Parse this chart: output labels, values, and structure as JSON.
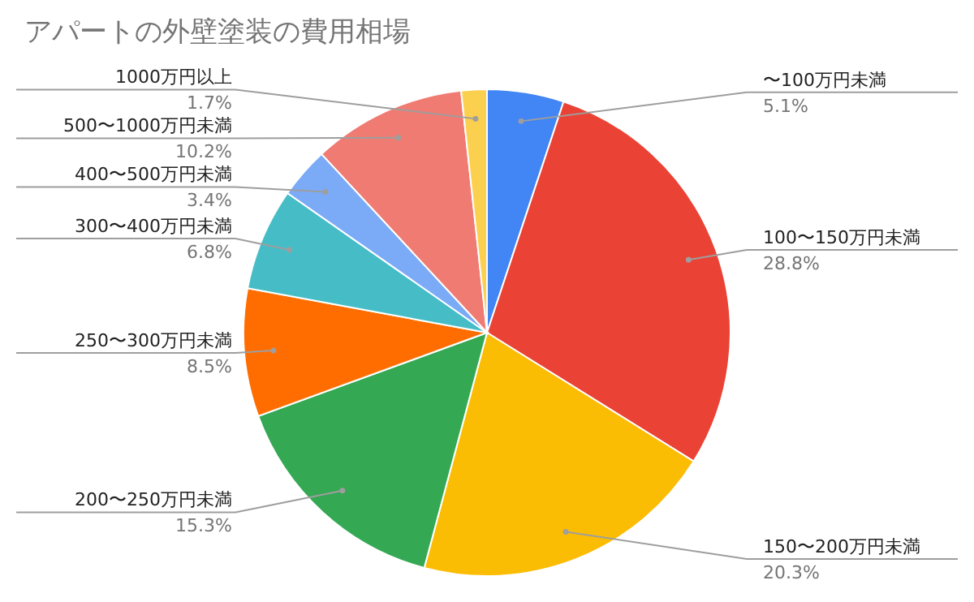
{
  "chart_data": {
    "type": "pie",
    "title": "アパートの外壁塗装の費用相場",
    "categories": [
      "〜100万円未満",
      "100〜150万円未満",
      "150〜200万円未満",
      "200〜250万円未満",
      "250〜300万円未満",
      "300〜400万円未満",
      "400〜500万円未満",
      "500〜1000万円未満",
      "1000万円以上"
    ],
    "values": [
      5.1,
      28.8,
      20.3,
      15.3,
      8.5,
      6.8,
      3.4,
      10.2,
      1.7
    ],
    "value_labels": [
      "5.1%",
      "28.8%",
      "20.3%",
      "15.3%",
      "8.5%",
      "6.8%",
      "3.4%",
      "10.2%",
      "1.7%"
    ],
    "colors": [
      "#4285f4",
      "#ea4335",
      "#fbbc04",
      "#34a853",
      "#ff6d01",
      "#46bdc6",
      "#7baaf7",
      "#f07b72",
      "#fcd04f"
    ]
  }
}
